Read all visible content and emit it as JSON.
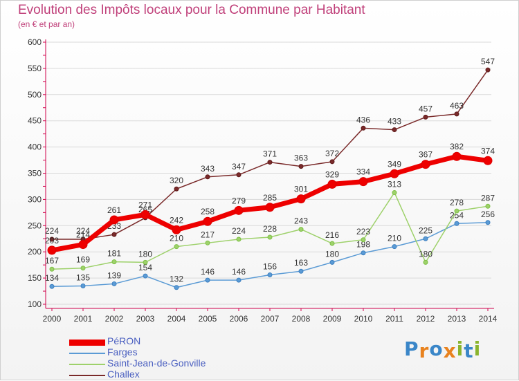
{
  "header": {
    "title": "Evolution des Impôts locaux pour la Commune par Habitant",
    "subtitle": "(en € et par an)"
  },
  "colors": {
    "title": "#c0407a",
    "axis": "#d0004a",
    "grid": "#d9d9d9"
  },
  "logo": {
    "letters": [
      "P",
      "r",
      "o",
      "x",
      "i",
      "t",
      "i"
    ],
    "colors": [
      "#3a86c8",
      "#e8821e",
      "#3a86c8",
      "#e8821e",
      "#8ab42d",
      "#3a86c8",
      "#8ab42d"
    ]
  },
  "chart_data": {
    "type": "line",
    "title": "Evolution des Impôts locaux pour la Commune par Habitant",
    "subtitle": "(en € et par an)",
    "xlabel": "",
    "ylabel": "",
    "x": [
      "2000",
      "2001",
      "2002",
      "2003",
      "2004",
      "2005",
      "2006",
      "2007",
      "2008",
      "2009",
      "2010",
      "2011",
      "2012",
      "2013",
      "2014"
    ],
    "ylim": [
      100,
      600
    ],
    "yticks": [
      100,
      150,
      200,
      250,
      300,
      350,
      400,
      450,
      500,
      550,
      600
    ],
    "grid": "horizontal",
    "legend_position": "bottom-left",
    "series": [
      {
        "name": "PéRON",
        "color": "#ee0000",
        "marker_color": "#dd0000",
        "width": "thick",
        "values": [
          203,
          214,
          261,
          271,
          242,
          258,
          279,
          285,
          301,
          329,
          334,
          349,
          367,
          382,
          374
        ]
      },
      {
        "name": "Farges",
        "color": "#5b9bd5",
        "marker_color": "#3c7fc0",
        "width": "thin",
        "values": [
          134,
          135,
          139,
          154,
          132,
          146,
          146,
          156,
          163,
          180,
          198,
          210,
          225,
          254,
          256
        ]
      },
      {
        "name": "Saint-Jean-de-Gonville",
        "color": "#9ed16b",
        "marker_color": "#7cc043",
        "width": "thin",
        "values": [
          167,
          169,
          181,
          180,
          210,
          217,
          224,
          228,
          243,
          216,
          223,
          313,
          180,
          278,
          287
        ]
      },
      {
        "name": "Challex",
        "color": "#7a2a2a",
        "marker_color": "#5e1a1a",
        "width": "thin",
        "values": [
          224,
          224,
          233,
          265,
          320,
          343,
          347,
          371,
          363,
          372,
          436,
          433,
          457,
          463,
          547
        ]
      }
    ]
  }
}
